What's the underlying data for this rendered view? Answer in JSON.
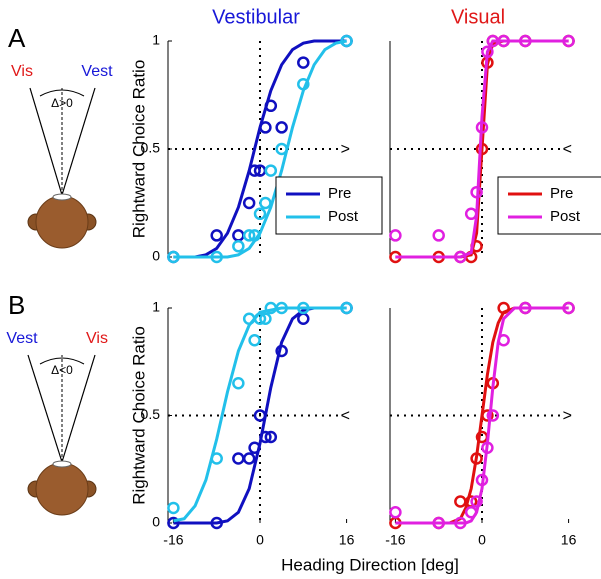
{
  "figure": {
    "xlabel": "Heading Direction [deg]",
    "panels": [
      {
        "label": "A",
        "left_cue": "Vis",
        "left_color": "#e01818",
        "right_cue": "Vest",
        "right_color": "#1818d8",
        "delta": "Δ>0"
      },
      {
        "label": "B",
        "left_cue": "Vest",
        "left_color": "#1818d8",
        "right_cue": "Vis",
        "right_color": "#e01818",
        "delta": "Δ<0"
      }
    ]
  },
  "chart_data": [
    {
      "type": "scatter",
      "title": "Vestibular",
      "title_color": "#1818d8",
      "ylabel": "Rightward Choice Ratio",
      "xlim": [
        -17,
        17
      ],
      "ylim": [
        0,
        1
      ],
      "yticks": [
        0,
        0.5,
        1
      ],
      "vline": 0,
      "hline": 0.5,
      "reference_marker": ">",
      "legend": "lower right",
      "series": [
        {
          "name": "Pre",
          "color": "#1010c0",
          "x": [
            -16,
            -8,
            -4,
            -2,
            -1,
            0,
            1,
            2,
            4,
            8,
            16
          ],
          "values": [
            0,
            0.1,
            0.1,
            0.25,
            0.4,
            0.4,
            0.6,
            0.7,
            0.6,
            0.9,
            1
          ],
          "fit_x": [
            -16,
            -14,
            -12,
            -10,
            -8,
            -6,
            -4,
            -2,
            0,
            2,
            4,
            6,
            8,
            10,
            12,
            14,
            16
          ],
          "fit_values": [
            0,
            0,
            0,
            0.01,
            0.04,
            0.11,
            0.23,
            0.4,
            0.6,
            0.77,
            0.89,
            0.96,
            0.99,
            1,
            1,
            1,
            1
          ]
        },
        {
          "name": "Post",
          "color": "#22c0ea",
          "x": [
            -16,
            -8,
            -4,
            -2,
            -1,
            0,
            1,
            2,
            4,
            8,
            16
          ],
          "values": [
            0,
            0,
            0.05,
            0.1,
            0.1,
            0.2,
            0.25,
            0.4,
            0.5,
            0.8,
            1
          ],
          "fit_x": [
            -16,
            -14,
            -12,
            -10,
            -8,
            -6,
            -4,
            -2,
            0,
            2,
            4,
            6,
            8,
            10,
            12,
            14,
            16
          ],
          "fit_values": [
            0,
            0,
            0,
            0,
            0,
            0,
            0.01,
            0.04,
            0.11,
            0.23,
            0.4,
            0.6,
            0.77,
            0.89,
            0.96,
            0.99,
            1
          ]
        }
      ]
    },
    {
      "type": "scatter",
      "title": "Visual",
      "title_color": "#e01818",
      "xlim": [
        -17,
        17
      ],
      "ylim": [
        0,
        1
      ],
      "vline": 0,
      "hline": 0.5,
      "reference_marker": "<",
      "legend": "lower right",
      "series": [
        {
          "name": "Pre",
          "color": "#e01010",
          "x": [
            -16,
            -8,
            -4,
            -2,
            -1,
            0,
            1,
            2,
            4,
            8,
            16
          ],
          "values": [
            0,
            0,
            0,
            0,
            0.05,
            0.5,
            0.9,
            1,
            1,
            1,
            1
          ],
          "fit_x": [
            -16,
            -4,
            -2,
            -1,
            0,
            1,
            2,
            4,
            16
          ],
          "fit_values": [
            0,
            0,
            0.01,
            0.11,
            0.5,
            0.89,
            0.99,
            1,
            1
          ]
        },
        {
          "name": "Post",
          "color": "#e020e0",
          "x": [
            -16,
            -8,
            -4,
            -2,
            -1,
            0,
            1,
            2,
            4,
            8,
            16
          ],
          "values": [
            0.1,
            0.1,
            0,
            0.2,
            0.3,
            0.6,
            0.95,
            1,
            1,
            1,
            1
          ],
          "fit_x": [
            -16,
            -4,
            -2,
            -1,
            0,
            1,
            2,
            4,
            16
          ],
          "fit_values": [
            0,
            0,
            0.02,
            0.19,
            0.65,
            0.95,
            1,
            1,
            1
          ]
        }
      ]
    },
    {
      "type": "scatter",
      "ylabel": "Rightward Choice Ratio",
      "xlim": [
        -17,
        17
      ],
      "ylim": [
        0,
        1
      ],
      "xticks": [
        -16,
        0,
        16
      ],
      "yticks": [
        0,
        0.5,
        1
      ],
      "vline": 0,
      "hline": 0.5,
      "reference_marker": "<",
      "series": [
        {
          "color": "#1010c0",
          "x": [
            -16,
            -8,
            -4,
            -2,
            -1,
            0,
            1,
            2,
            4,
            8,
            16
          ],
          "values": [
            0,
            0,
            0.3,
            0.3,
            0.35,
            0.5,
            0.4,
            0.4,
            0.8,
            0.95,
            1
          ],
          "fit_x": [
            -16,
            -14,
            -12,
            -10,
            -8,
            -6,
            -4,
            -2,
            0,
            2,
            4,
            6,
            8,
            10,
            12,
            14,
            16
          ],
          "fit_values": [
            0,
            0,
            0,
            0,
            0,
            0.01,
            0.05,
            0.16,
            0.37,
            0.63,
            0.84,
            0.95,
            0.99,
            1,
            1,
            1,
            1
          ]
        },
        {
          "color": "#22c0ea",
          "x": [
            -16,
            -8,
            -4,
            -2,
            -1,
            0,
            1,
            2,
            4,
            8,
            16
          ],
          "values": [
            0.07,
            0.3,
            0.65,
            0.95,
            0.85,
            0.95,
            0.95,
            1,
            1,
            1,
            1
          ],
          "fit_x": [
            -16,
            -14,
            -12,
            -10,
            -8,
            -6,
            -4,
            -2,
            0,
            2,
            4,
            6,
            8,
            10,
            12,
            14,
            16
          ],
          "fit_values": [
            0.01,
            0.02,
            0.08,
            0.2,
            0.39,
            0.61,
            0.8,
            0.92,
            0.98,
            0.99,
            1,
            1,
            1,
            1,
            1,
            1,
            1
          ]
        }
      ]
    },
    {
      "type": "scatter",
      "xlim": [
        -17,
        17
      ],
      "ylim": [
        0,
        1
      ],
      "xticks": [
        -16,
        0,
        16
      ],
      "vline": 0,
      "hline": 0.5,
      "reference_marker": ">",
      "series": [
        {
          "color": "#e01010",
          "x": [
            -16,
            -8,
            -4,
            -2,
            -1,
            0,
            1,
            2,
            4,
            8,
            16
          ],
          "values": [
            0,
            0,
            0.1,
            0.1,
            0.3,
            0.4,
            0.5,
            0.65,
            1,
            1,
            1
          ],
          "fit_x": [
            -16,
            -8,
            -6,
            -4,
            -3,
            -2,
            -1,
            0,
            1,
            2,
            3,
            4,
            6,
            8,
            16
          ],
          "fit_values": [
            0,
            0,
            0,
            0.02,
            0.07,
            0.16,
            0.31,
            0.5,
            0.69,
            0.84,
            0.93,
            0.98,
            1,
            1,
            1
          ]
        },
        {
          "color": "#e020e0",
          "x": [
            -16,
            -8,
            -4,
            -2,
            -1,
            0,
            1,
            2,
            4,
            8,
            16
          ],
          "values": [
            0.05,
            0,
            0,
            0.05,
            0.1,
            0.2,
            0.35,
            0.5,
            0.85,
            1,
            1
          ],
          "fit_x": [
            -16,
            -8,
            -6,
            -4,
            -3,
            -2,
            -1,
            0,
            1,
            2,
            3,
            4,
            6,
            8,
            16
          ],
          "fit_values": [
            0,
            0,
            0,
            0,
            0,
            0.01,
            0.05,
            0.16,
            0.37,
            0.63,
            0.84,
            0.95,
            1,
            1,
            1
          ]
        }
      ]
    }
  ]
}
